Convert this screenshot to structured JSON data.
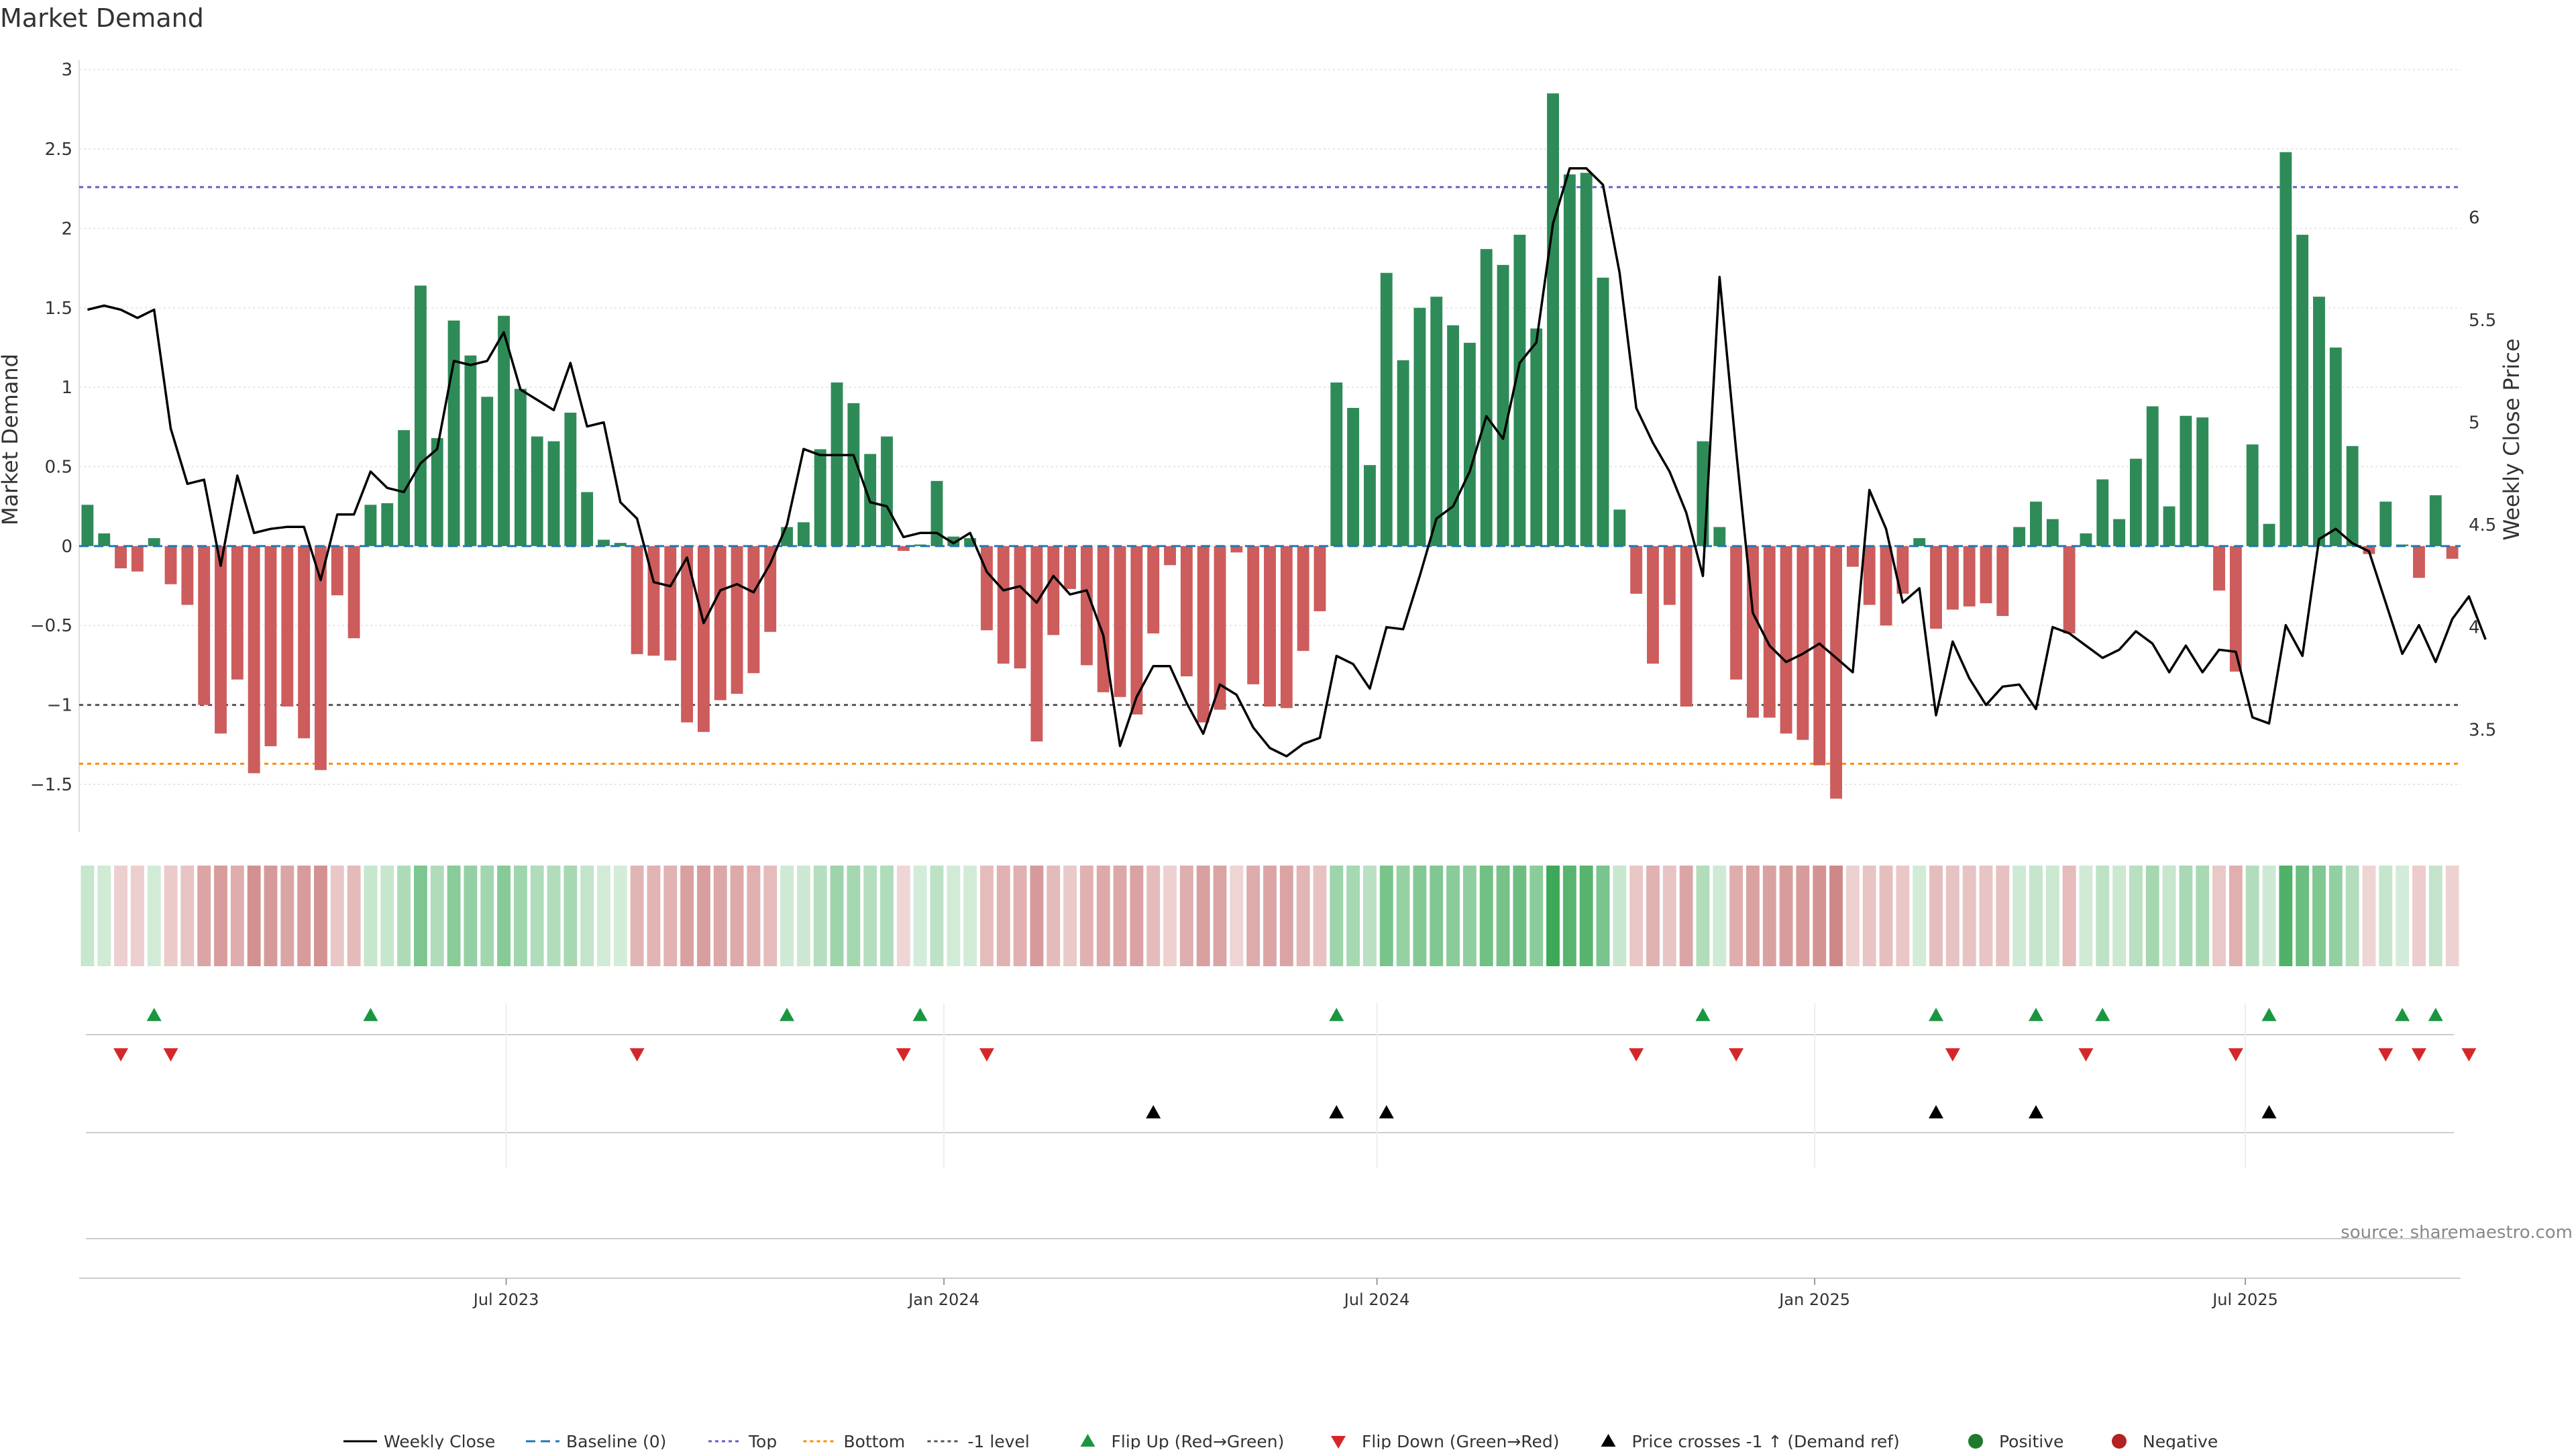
{
  "chart_data": {
    "type": "bar",
    "title": "Market Demand",
    "ylabel_left": "Market Demand",
    "ylabel_right": "Weekly Close Price",
    "source": "source: sharemaestro.com",
    "x_start": "2023-01-06",
    "week_step_days": 7,
    "x_ticks": [
      {
        "date": "2023-07-01",
        "label": "Jul 2023"
      },
      {
        "date": "2024-01-01",
        "label": "Jan 2024"
      },
      {
        "date": "2024-07-01",
        "label": "Jul 2024"
      },
      {
        "date": "2025-01-01",
        "label": "Jan 2025"
      },
      {
        "date": "2025-07-01",
        "label": "Jul 2025"
      }
    ],
    "ylim_left": [
      -1.8,
      3.1
    ],
    "yticks_left": [
      {
        "value": 3,
        "label": "3"
      },
      {
        "value": 2.5,
        "label": "2.5"
      },
      {
        "value": 2,
        "label": "2"
      },
      {
        "value": 1.5,
        "label": "1.5"
      },
      {
        "value": 1,
        "label": "1"
      },
      {
        "value": 0.5,
        "label": "0.5"
      },
      {
        "value": 0,
        "label": "0"
      },
      {
        "value": -0.5,
        "label": "−0.5"
      },
      {
        "value": -1,
        "label": "−1"
      },
      {
        "value": -1.5,
        "label": "−1.5"
      }
    ],
    "ylim_right": [
      3.0,
      6.8
    ],
    "yticks_right": [
      {
        "value": 3.5,
        "label": "3.5"
      },
      {
        "value": 4,
        "label": "4"
      },
      {
        "value": 4.5,
        "label": "4.5"
      },
      {
        "value": 5,
        "label": "5"
      },
      {
        "value": 5.5,
        "label": "5.5"
      },
      {
        "value": 6,
        "label": "6"
      }
    ],
    "levels": {
      "top": 2.26,
      "bottom": -1.37,
      "minus_one": -1.0,
      "baseline": 0
    },
    "colors": {
      "positive": "#2e8b57",
      "negative": "#cd5c5c",
      "top_line": "#6a5acd",
      "bottom_line": "#ff8c00",
      "minus_one_line": "#555555",
      "baseline": "#1f77b4",
      "price_line": "#000000",
      "flip_up": "#1a9641",
      "flip_down": "#d62728",
      "cross": "#000000",
      "legend_positive": "#1f7a2e",
      "legend_negative": "#b22222"
    },
    "series": [
      {
        "name": "Market Demand",
        "values": [
          0.26,
          0.08,
          -0.14,
          -0.16,
          0.05,
          -0.24,
          -0.37,
          -1.0,
          -1.18,
          -0.84,
          -1.43,
          -1.26,
          -1.01,
          -1.21,
          -1.41,
          -0.31,
          -0.58,
          0.26,
          0.27,
          0.73,
          1.64,
          0.68,
          1.42,
          1.2,
          0.94,
          1.45,
          0.99,
          0.69,
          0.66,
          0.84,
          0.34,
          0.04,
          0.02,
          -0.68,
          -0.69,
          -0.72,
          -1.11,
          -1.17,
          -0.97,
          -0.93,
          -0.8,
          -0.54,
          0.12,
          0.15,
          0.61,
          1.03,
          0.9,
          0.58,
          0.69,
          -0.03,
          0.01,
          0.41,
          0.06,
          0.05,
          -0.53,
          -0.74,
          -0.77,
          -1.23,
          -0.56,
          -0.27,
          -0.75,
          -0.92,
          -0.95,
          -1.06,
          -0.55,
          -0.12,
          -0.82,
          -1.11,
          -1.03,
          -0.04,
          -0.87,
          -1.01,
          -1.02,
          -0.66,
          -0.41,
          1.03,
          0.87,
          0.51,
          1.72,
          1.17,
          1.5,
          1.57,
          1.39,
          1.28,
          1.87,
          1.77,
          1.96,
          1.37,
          2.85,
          2.34,
          2.35,
          1.69,
          0.23,
          -0.3,
          -0.74,
          -0.37,
          -1.01,
          0.66,
          0.12,
          -0.84,
          -1.08,
          -1.08,
          -1.18,
          -1.22,
          -1.38,
          -1.59,
          -0.13,
          -0.37,
          -0.5,
          -0.3,
          0.05,
          -0.52,
          -0.4,
          -0.38,
          -0.36,
          -0.44,
          0.12,
          0.28,
          0.17,
          -0.55,
          0.08,
          0.42,
          0.17,
          0.55,
          0.88,
          0.25,
          0.82,
          0.81,
          -0.28,
          -0.79,
          0.64,
          0.14,
          2.48,
          1.96,
          1.57,
          1.25,
          0.63,
          -0.05,
          0.28,
          0.01,
          -0.2,
          0.32,
          -0.08
        ]
      },
      {
        "name": "Weekly Close",
        "values": [
          5.55,
          5.57,
          5.55,
          5.51,
          5.55,
          4.97,
          4.7,
          4.72,
          4.3,
          4.74,
          4.46,
          4.48,
          4.49,
          4.49,
          4.23,
          4.55,
          4.55,
          4.76,
          4.68,
          4.66,
          4.8,
          4.87,
          5.3,
          5.28,
          5.3,
          5.44,
          5.16,
          5.11,
          5.06,
          5.29,
          4.98,
          5.0,
          4.61,
          4.53,
          4.22,
          4.2,
          4.34,
          4.02,
          4.18,
          4.21,
          4.17,
          4.31,
          4.5,
          4.87,
          4.84,
          4.84,
          4.84,
          4.61,
          4.59,
          4.44,
          4.46,
          4.46,
          4.41,
          4.46,
          4.27,
          4.18,
          4.2,
          4.12,
          4.25,
          4.16,
          4.18,
          3.96,
          3.42,
          3.66,
          3.81,
          3.81,
          3.63,
          3.48,
          3.72,
          3.67,
          3.51,
          3.41,
          3.37,
          3.43,
          3.46,
          3.86,
          3.82,
          3.7,
          4.0,
          3.99,
          4.25,
          4.53,
          4.59,
          4.76,
          5.03,
          4.92,
          5.29,
          5.39,
          5.97,
          6.24,
          6.24,
          6.16,
          5.73,
          5.07,
          4.9,
          4.76,
          4.56,
          4.25,
          5.71,
          4.86,
          4.07,
          3.91,
          3.83,
          3.87,
          3.92,
          3.85,
          3.78,
          4.67,
          4.48,
          4.12,
          4.19,
          3.57,
          3.93,
          3.75,
          3.62,
          3.71,
          3.72,
          3.6,
          4.0,
          3.97,
          3.91,
          3.85,
          3.89,
          3.98,
          3.92,
          3.78,
          3.91,
          3.78,
          3.89,
          3.88,
          3.56,
          3.53,
          4.01,
          3.86,
          4.43,
          4.48,
          4.41,
          4.37,
          4.12,
          3.87,
          4.01,
          3.83,
          4.04,
          4.15,
          3.94
        ]
      }
    ],
    "events": {
      "flip_up_weeks": [
        4,
        17,
        42,
        50,
        75,
        97,
        111,
        117,
        121,
        131,
        139,
        141
      ],
      "flip_down_weeks": [
        2,
        5,
        33,
        49,
        54,
        93,
        99,
        112,
        120,
        129,
        138,
        140,
        143
      ],
      "price_cross_weeks": [
        64,
        75,
        78,
        111,
        117,
        131
      ]
    },
    "legend": [
      {
        "key": "weekly_close",
        "label": "Weekly Close"
      },
      {
        "key": "baseline",
        "label": "Baseline (0)"
      },
      {
        "key": "top",
        "label": "Top"
      },
      {
        "key": "bottom",
        "label": "Bottom"
      },
      {
        "key": "minus_one",
        "label": "-1 level"
      },
      {
        "key": "flip_up",
        "label": "Flip Up (Red→Green)"
      },
      {
        "key": "flip_down",
        "label": "Flip Down (Green→Red)"
      },
      {
        "key": "cross",
        "label": "Price crosses -1 ↑ (Demand ref)"
      },
      {
        "key": "positive",
        "label": "Positive"
      },
      {
        "key": "negative",
        "label": "Negative"
      }
    ]
  }
}
